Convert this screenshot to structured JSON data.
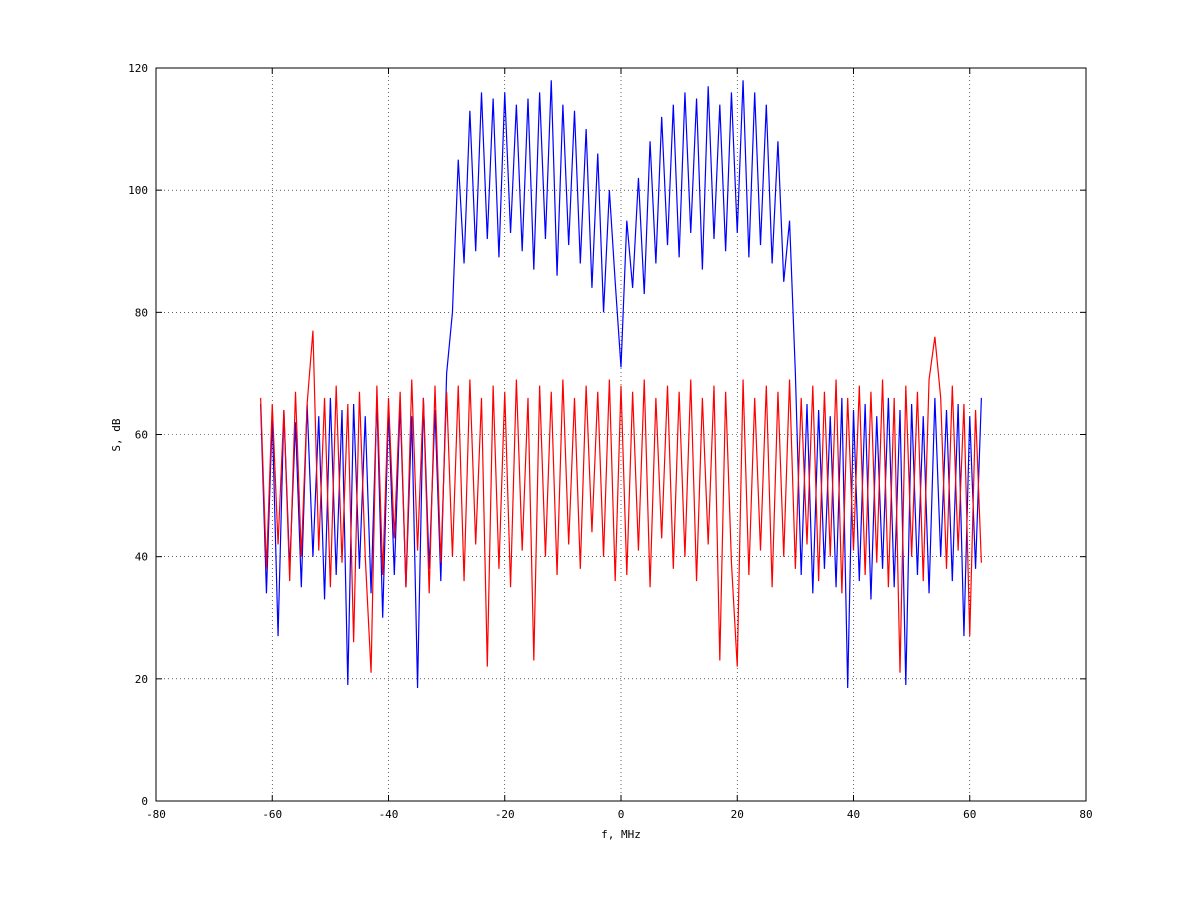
{
  "chart_data": {
    "type": "line",
    "xlabel": "f, MHz",
    "ylabel": "S, dB",
    "x": [
      -62,
      -61,
      -60,
      -59,
      -58,
      -57,
      -56,
      -55,
      -54,
      -53,
      -52,
      -51,
      -50,
      -49,
      -48,
      -47,
      -46,
      -45,
      -44,
      -43,
      -42,
      -41,
      -40,
      -39,
      -38,
      -37,
      -36,
      -35,
      -34,
      -33,
      -32,
      -31,
      -30,
      -29,
      -28,
      -27,
      -26,
      -25,
      -24,
      -23,
      -22,
      -21,
      -20,
      -19,
      -18,
      -17,
      -16,
      -15,
      -14,
      -13,
      -12,
      -11,
      -10,
      -9,
      -8,
      -7,
      -6,
      -5,
      -4,
      -3,
      -2,
      -1,
      0,
      1,
      2,
      3,
      4,
      5,
      6,
      7,
      8,
      9,
      10,
      11,
      12,
      13,
      14,
      15,
      16,
      17,
      18,
      19,
      20,
      21,
      22,
      23,
      24,
      25,
      26,
      27,
      28,
      29,
      30,
      31,
      32,
      33,
      34,
      35,
      36,
      37,
      38,
      39,
      40,
      41,
      42,
      43,
      44,
      45,
      46,
      47,
      48,
      49,
      50,
      51,
      52,
      53,
      54,
      55,
      56,
      57,
      58,
      59,
      60,
      61,
      62
    ],
    "series": [
      {
        "color": "#0000ff",
        "values": [
          65,
          34,
          63,
          27,
          64,
          38,
          62,
          35,
          65,
          40,
          63,
          33,
          66,
          37,
          64,
          19,
          65,
          38,
          63,
          34,
          66,
          30,
          64,
          37,
          65,
          35,
          63,
          18.5,
          66,
          38,
          64,
          36,
          70,
          80,
          105,
          88,
          113,
          90,
          116,
          92,
          115,
          89,
          116,
          93,
          114,
          90,
          115,
          87,
          116,
          92,
          118,
          86,
          114,
          91,
          113,
          88,
          110,
          84,
          106,
          80,
          100,
          85,
          71,
          95,
          84,
          102,
          83,
          108,
          88,
          112,
          91,
          114,
          89,
          116,
          93,
          115,
          87,
          117,
          92,
          114,
          90,
          116,
          93,
          118,
          89,
          116,
          91,
          114,
          88,
          108,
          85,
          95,
          70,
          37,
          65,
          34,
          64,
          38,
          63,
          35,
          66,
          18.5,
          64,
          36,
          65,
          33,
          63,
          38,
          66,
          35,
          64,
          19,
          65,
          37,
          63,
          34,
          66,
          40,
          64,
          36,
          65,
          27,
          63,
          38,
          66
        ]
      },
      {
        "color": "#ff0000",
        "values": [
          66,
          38,
          65,
          42,
          64,
          36,
          67,
          40,
          65,
          77,
          41,
          66,
          35,
          68,
          39,
          65,
          26,
          67,
          40,
          21,
          68,
          37,
          66,
          43,
          67,
          35,
          69,
          41,
          66,
          34,
          68,
          39,
          67,
          40,
          68,
          36,
          69,
          42,
          66,
          22,
          68,
          38,
          67,
          35,
          69,
          41,
          66,
          23,
          68,
          40,
          67,
          37,
          69,
          42,
          66,
          38,
          68,
          44,
          67,
          40,
          69,
          36,
          68,
          37,
          67,
          41,
          69,
          35,
          66,
          43,
          68,
          38,
          67,
          40,
          69,
          36,
          66,
          42,
          68,
          23,
          67,
          39,
          22,
          69,
          37,
          66,
          41,
          68,
          35,
          67,
          40,
          69,
          38,
          66,
          42,
          68,
          36,
          67,
          40,
          69,
          34,
          66,
          41,
          68,
          37,
          67,
          39,
          69,
          35,
          66,
          21,
          68,
          40,
          67,
          36,
          69,
          76,
          66,
          38,
          68,
          41,
          65,
          27,
          64,
          39
        ]
      }
    ],
    "xlim": [
      -80,
      80
    ],
    "xticks": [
      -80,
      -60,
      -40,
      -20,
      0,
      20,
      40,
      60,
      80
    ],
    "ylim": [
      0,
      120
    ],
    "yticks": [
      0,
      20,
      40,
      60,
      80,
      100,
      120
    ],
    "grid": true
  }
}
